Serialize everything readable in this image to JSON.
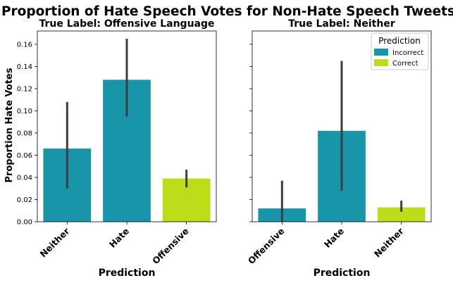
{
  "chart_data": {
    "type": "bar",
    "title": "Proportion of Hate Speech Votes for Non-Hate Speech Tweets",
    "ylabel": "Proportion Hate Votes",
    "ylim": [
      0,
      0.172
    ],
    "yticks": [
      "0.00",
      "0.02",
      "0.04",
      "0.06",
      "0.08",
      "0.10",
      "0.12",
      "0.14",
      "0.16"
    ],
    "legend": {
      "title": "Prediction",
      "placement": "top-right",
      "entries": [
        {
          "name": "Incorrect",
          "color": "#1895a8"
        },
        {
          "name": "Correct",
          "color": "#bbdd1a"
        }
      ]
    },
    "panels": [
      {
        "title": "True Label: Offensive Language",
        "xlabel": "Prediction",
        "categories": [
          "Neither",
          "Hate",
          "Offensive"
        ],
        "values": [
          0.066,
          0.128,
          0.039
        ],
        "error_low": [
          0.03,
          0.095,
          0.031
        ],
        "error_high": [
          0.108,
          0.165,
          0.047
        ],
        "correct": [
          false,
          false,
          true
        ]
      },
      {
        "title": "True Label: Neither",
        "xlabel": "Prediction",
        "categories": [
          "Offensive",
          "Hate",
          "Neither"
        ],
        "values": [
          0.012,
          0.082,
          0.013
        ],
        "error_low": [
          0.0,
          0.028,
          0.009
        ],
        "error_high": [
          0.037,
          0.145,
          0.019
        ],
        "correct": [
          false,
          false,
          true
        ]
      }
    ]
  }
}
